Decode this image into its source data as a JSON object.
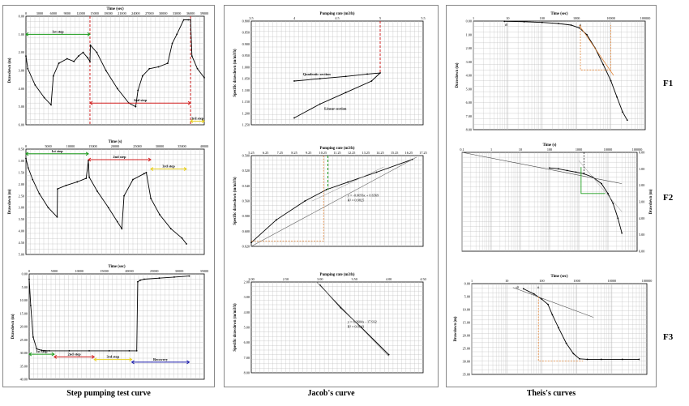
{
  "captions": {
    "col1": "Step pumping test curve",
    "col2": "Jacob's curve",
    "col3": "Theis's curves"
  },
  "row_labels": [
    "F1",
    "F2",
    "F3"
  ],
  "colors": {
    "series": "#000000",
    "grid": "#bbbbbb",
    "step1": "#1a9a1a",
    "step2": "#d22020",
    "step3": "#e8d020",
    "recovery": "#1a1aaa",
    "orange": "#e08030",
    "green": "#20a020"
  },
  "chart_data": [
    {
      "id": "f1_step",
      "type": "line",
      "xlabel": "Time (sec)",
      "ylabel": "Drawdown (m)",
      "xlim": [
        0,
        39000
      ],
      "ylim": [
        6.0,
        0.0
      ],
      "xticks": [
        "0",
        "3000",
        "6000",
        "9000",
        "12000",
        "15000",
        "18000",
        "21000",
        "24000",
        "27000",
        "30000",
        "33000",
        "36000",
        "39000"
      ],
      "yticks": [
        "0.00",
        "1.00",
        "2.00",
        "3.00",
        "4.00",
        "5.00",
        "6.00"
      ],
      "grid": true,
      "series": [
        {
          "x": [
            0,
            400,
            2000,
            4000,
            5500,
            6000,
            7200,
            9000,
            10500,
            11500,
            12500,
            13500,
            14000,
            14100,
            15500,
            17500,
            20000,
            22500,
            24000,
            24500,
            25500,
            27000,
            29000,
            31000,
            32000,
            33000,
            34500,
            35500,
            36000,
            36300,
            37500,
            39000
          ],
          "y": [
            2.2,
            2.9,
            3.8,
            4.5,
            4.9,
            3.3,
            2.6,
            2.35,
            2.5,
            2.2,
            2.0,
            2.3,
            2.5,
            1.6,
            2.0,
            3.0,
            4.0,
            4.8,
            5.0,
            4.1,
            3.3,
            2.9,
            2.8,
            2.6,
            1.5,
            1.0,
            0.2,
            0.2,
            0.2,
            2.2,
            2.9,
            3.4
          ]
        }
      ],
      "annotations": [
        {
          "text": "1st step",
          "x": [
            0,
            14000
          ],
          "y": 1.0,
          "color": "step1"
        },
        {
          "text": "2nd step",
          "x": [
            14000,
            36000
          ],
          "y": 4.8,
          "color": "step2"
        },
        {
          "text": "3rd step",
          "x": [
            36000,
            39000
          ],
          "y": 5.8,
          "color": "step3"
        }
      ],
      "vlines": [
        14000,
        36000
      ]
    },
    {
      "id": "f1_jacob",
      "type": "line",
      "xlabel": "Pumping rate (m3/h)",
      "ylabel": "Specific drawdown (m/m3/h)",
      "xlim": [
        3.5,
        5.5
      ],
      "ylim": [
        1.25,
        0.8
      ],
      "xticks": [
        "3.5",
        "4",
        "4.5",
        "5",
        "5.5"
      ],
      "yticks": [
        "0.800",
        "0.850",
        "0.900",
        "0.950",
        "1.000",
        "1.050",
        "1.100",
        "1.150",
        "1.200",
        "1.250"
      ],
      "series": [
        {
          "x": [
            4.0,
            4.3,
            4.6,
            4.85,
            5.0,
            4.9,
            4.6,
            4.3,
            4.0
          ],
          "y": [
            1.06,
            1.05,
            1.04,
            1.03,
            1.025,
            1.06,
            1.11,
            1.16,
            1.22
          ]
        }
      ],
      "annotations": [
        {
          "text": "Quadratic section",
          "x": 4.1,
          "y": 1.035
        },
        {
          "text": "Linear section",
          "x": 4.35,
          "y": 1.185
        }
      ]
    },
    {
      "id": "f1_theis",
      "type": "line",
      "xlabel": "Time (sec)",
      "ylabel": "Drawdown (m)",
      "xscale": "log",
      "xlim": [
        1,
        100000
      ],
      "ylim": [
        8.0,
        0.0
      ],
      "xticks": [
        "1",
        "10",
        "100",
        "1000",
        "10000",
        "100000"
      ],
      "yticks": [
        "0.00",
        "1.00",
        "2.00",
        "3.00",
        "4.00",
        "5.00",
        "6.00",
        "7.00",
        "8.00"
      ],
      "series": [
        {
          "x": [
            8,
            30,
            100,
            300,
            700,
            1200,
            2000,
            3500,
            6000,
            10000,
            15000,
            22000,
            30000
          ],
          "y": [
            0.02,
            0.05,
            0.1,
            0.18,
            0.3,
            0.5,
            1.0,
            2.0,
            3.2,
            4.4,
            5.6,
            6.7,
            7.3
          ]
        }
      ],
      "markers": [
        {
          "text": "t0",
          "x": 9
        },
        {
          "text": "ti",
          "x": 1300
        }
      ]
    },
    {
      "id": "f2_step",
      "type": "line",
      "xlabel": "Time (s)",
      "ylabel": "Drawdown (m)",
      "xlim": [
        0,
        40000
      ],
      "ylim": [
        5.0,
        0.5
      ],
      "xticks": [
        "0",
        "5000",
        "10000",
        "15000",
        "20000",
        "25000",
        "30000",
        "35000",
        "40000"
      ],
      "yticks": [
        "0.50",
        "1.00",
        "1.50",
        "2.00",
        "2.50",
        "3.00",
        "3.50",
        "4.00",
        "4.50",
        "5.00"
      ],
      "series": [
        {
          "x": [
            0,
            500,
            1500,
            3000,
            5000,
            7000,
            7100,
            9000,
            11500,
            13500,
            14000,
            14200,
            16000,
            18500,
            20500,
            21500,
            22000,
            24000,
            26500,
            27000,
            28000,
            30000,
            32500,
            35000,
            36000
          ],
          "y": [
            0.9,
            1.3,
            1.8,
            2.4,
            3.0,
            3.4,
            2.2,
            2.05,
            1.9,
            1.75,
            1.0,
            1.7,
            2.3,
            3.0,
            3.6,
            3.9,
            2.5,
            1.8,
            1.55,
            1.5,
            2.6,
            3.3,
            3.9,
            4.3,
            4.55
          ]
        }
      ],
      "annotations": [
        {
          "text": "1st step",
          "x": [
            0,
            14000
          ],
          "y": 0.7,
          "color": "step1"
        },
        {
          "text": "2nd step",
          "x": [
            14000,
            28000
          ],
          "y": 0.95,
          "color": "step2"
        },
        {
          "text": "3rd step",
          "x": [
            28000,
            36000
          ],
          "y": 1.35,
          "color": "step3"
        }
      ]
    },
    {
      "id": "f2_jacob",
      "type": "line",
      "xlabel": "Pumping rate (m3/h)",
      "ylabel": "Specific drawdown (m/m3/h)",
      "xlim": [
        5.25,
        17.25
      ],
      "ylim": [
        0.62,
        0.5
      ],
      "xticks": [
        "5.25",
        "6.25",
        "7.25",
        "8.25",
        "9.25",
        "10.25",
        "11.25",
        "12.25",
        "13.25",
        "14.25",
        "15.25",
        "16.25",
        "17.25"
      ],
      "yticks": [
        "0.500",
        "0.520",
        "0.540",
        "0.560",
        "0.580",
        "0.600",
        "0.620"
      ],
      "series": [
        {
          "x": [
            5.25,
            7,
            9,
            10.5,
            12,
            14,
            16.5
          ],
          "y": [
            0.615,
            0.585,
            0.56,
            0.545,
            0.535,
            0.522,
            0.505
          ]
        }
      ],
      "equation": [
        "y = -0.0056x + 0.6569",
        "R² = 0.9825"
      ]
    },
    {
      "id": "f2_theis",
      "type": "line",
      "xlabel": "Time (s)",
      "ylabel": "Drawdown (m)",
      "xscale": "log",
      "xlim": [
        0.1,
        100000
      ],
      "ylim": [
        6.0,
        0.0
      ],
      "xticks": [
        "0.1",
        "1",
        "10",
        "100",
        "1000",
        "10000",
        "100000"
      ],
      "yticks": [
        "0.00",
        "1.00",
        "2.00",
        "3.00",
        "4.00",
        "5.00",
        "6.00"
      ],
      "series": [
        {
          "x": [
            100,
            200,
            400,
            800,
            1500,
            3000,
            6000,
            10000,
            15000,
            22000,
            30000
          ],
          "y": [
            0.95,
            1.0,
            1.1,
            1.2,
            1.3,
            1.5,
            1.9,
            2.5,
            3.1,
            4.0,
            4.9
          ]
        }
      ]
    },
    {
      "id": "f3_step",
      "type": "line",
      "xlabel": "Time (sec)",
      "ylabel": "Drawdown (m)",
      "xlim": [
        0,
        35000
      ],
      "ylim": [
        40,
        0
      ],
      "xticks": [
        "0",
        "5000",
        "10000",
        "15000",
        "20000",
        "25000",
        "30000",
        "35000"
      ],
      "yticks": [
        "0.00",
        "5.00",
        "10.00",
        "15.00",
        "20.00",
        "25.00",
        "30.00",
        "35.00",
        "40.00"
      ],
      "series": [
        {
          "x": [
            0,
            300,
            800,
            1500,
            2500,
            4000,
            8000,
            12000,
            16000,
            20000,
            21500,
            21700,
            22200,
            23000,
            26000,
            29000,
            32000
          ],
          "y": [
            2,
            12,
            24,
            28.5,
            29,
            29.2,
            29.2,
            29.2,
            29.2,
            29.2,
            29.2,
            3,
            2.4,
            2.0,
            1.6,
            1.2,
            0.8
          ]
        }
      ],
      "annotations": [
        {
          "text": "1st step",
          "x": [
            0,
            5000
          ],
          "y": 30.5,
          "color": "step1"
        },
        {
          "text": "2nd step",
          "x": [
            5000,
            13000
          ],
          "y": 31.5,
          "color": "step2"
        },
        {
          "text": "3rd step",
          "x": [
            13000,
            20500
          ],
          "y": 32.5,
          "color": "step3"
        },
        {
          "text": "Recovery",
          "x": [
            20500,
            32000
          ],
          "y": 33.5,
          "color": "recovery"
        }
      ]
    },
    {
      "id": "f3_jacob",
      "type": "line",
      "xlabel": "Pumping rate (m3/h)",
      "ylabel": "Specific drawdown (m/m3/h)",
      "xlim": [
        2.0,
        4.5
      ],
      "ylim": [
        8.0,
        2.0
      ],
      "xticks": [
        "2.00",
        "2.50",
        "3.00",
        "3.50",
        "4.00",
        "4.50"
      ],
      "yticks": [
        "2.00",
        "3.00",
        "4.00",
        "5.00",
        "6.00",
        "7.00",
        "8.00"
      ],
      "series": [
        {
          "x": [
            3.0,
            3.3,
            3.6,
            4.0
          ],
          "y": [
            2.2,
            3.7,
            5.0,
            6.8
          ]
        }
      ],
      "equation": [
        "y = 6.2604x - 17.932",
        "R² = 0.9643"
      ]
    },
    {
      "id": "f3_theis",
      "type": "line",
      "xlabel": "Time (sec)",
      "ylabel": "Drawdown (m)",
      "xscale": "log",
      "xlim": [
        1,
        100000
      ],
      "ylim": [
        35,
        0
      ],
      "xticks": [
        "1",
        "10",
        "100",
        "1000",
        "10000",
        "100000"
      ],
      "yticks": [
        "0.00",
        "5.00",
        "10.00",
        "15.00",
        "20.00",
        "25.00",
        "30.00",
        "35.00"
      ],
      "series": [
        {
          "x": [
            30,
            60,
            100,
            150,
            200,
            300,
            500,
            800,
            1200,
            2000,
            5000,
            20000,
            60000
          ],
          "y": [
            2,
            4,
            6,
            8,
            12,
            17,
            23,
            27,
            29,
            29.2,
            29.2,
            29.2,
            29.2
          ]
        }
      ],
      "markers": [
        {
          "text": "t0",
          "x": 20
        },
        {
          "text": "ti",
          "x": 80
        }
      ]
    }
  ]
}
